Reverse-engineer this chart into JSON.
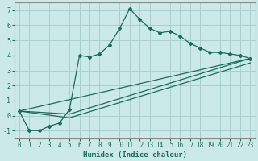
{
  "xlabel": "Humidex (Indice chaleur)",
  "xlim": [
    -0.5,
    23.5
  ],
  "ylim": [
    -1.5,
    7.5
  ],
  "xticks": [
    0,
    1,
    2,
    3,
    4,
    5,
    6,
    7,
    8,
    9,
    10,
    11,
    12,
    13,
    14,
    15,
    16,
    17,
    18,
    19,
    20,
    21,
    22,
    23
  ],
  "yticks": [
    -1,
    0,
    1,
    2,
    3,
    4,
    5,
    6,
    7
  ],
  "background_color": "#cce9e9",
  "grid_color": "#aacfcf",
  "line_color": "#1a6b5a",
  "line1_x": [
    0,
    1,
    2,
    3,
    4,
    5,
    6,
    7,
    8,
    9,
    10,
    11,
    12,
    13,
    14,
    15,
    16,
    17,
    18,
    19,
    20,
    21,
    22,
    23
  ],
  "line1_y": [
    0.3,
    -1.0,
    -1.0,
    -0.7,
    -0.5,
    0.4,
    4.0,
    3.9,
    4.1,
    4.7,
    5.8,
    7.1,
    6.4,
    5.8,
    5.5,
    5.6,
    5.3,
    4.8,
    4.5,
    4.2,
    4.2,
    4.1,
    4.0,
    3.8
  ],
  "line2_x": [
    0,
    23
  ],
  "line2_y": [
    0.3,
    3.8
  ],
  "line3_x": [
    0,
    5,
    23
  ],
  "line3_y": [
    0.3,
    -0.15,
    3.5
  ],
  "line4_x": [
    0,
    5,
    23
  ],
  "line4_y": [
    0.3,
    0.1,
    3.8
  ]
}
